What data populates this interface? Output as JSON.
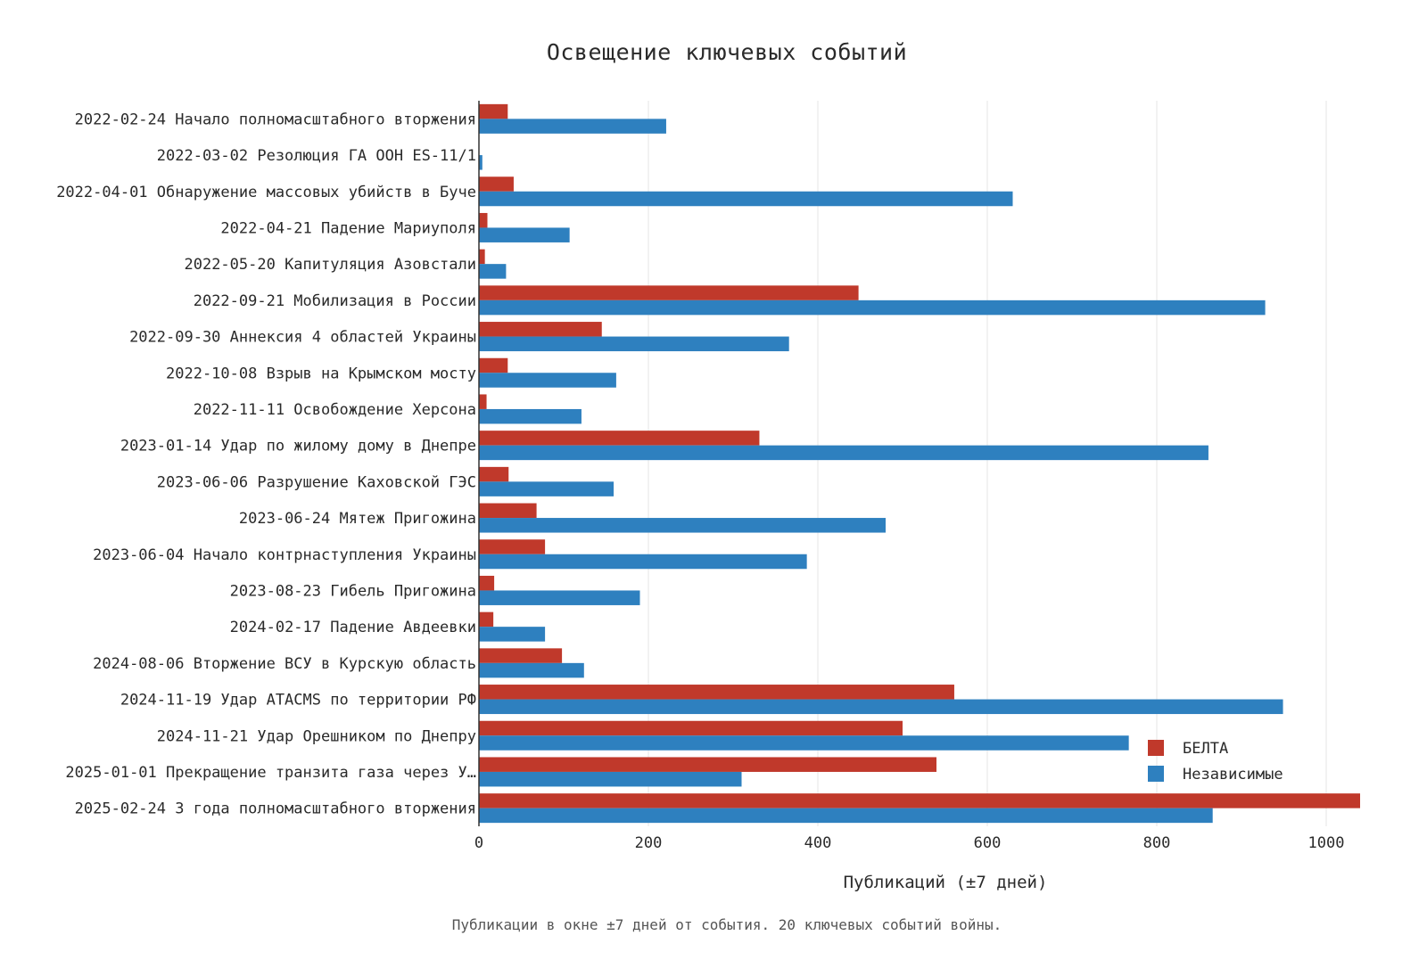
{
  "chart_data": {
    "type": "bar",
    "orientation": "horizontal",
    "title": "Освещение ключевых событий",
    "xlabel": "Публикаций (±7 дней)",
    "ylabel": "",
    "caption": "Публикации в окне ±7 дней от события. 20 ключевых событий войны.",
    "xlim": [
      0,
      1040
    ],
    "xticks": [
      0,
      200,
      400,
      600,
      800,
      1000
    ],
    "grid": true,
    "legend_position": "bottom-right",
    "categories": [
      "2022-02-24 Начало полномасштабного вторжения",
      "2022-03-02 Резолюция ГА ООН ES-11/1",
      "2022-04-01 Обнаружение массовых убийств в Буче",
      "2022-04-21 Падение Мариуполя",
      "2022-05-20 Капитуляция Азовстали",
      "2022-09-21 Мобилизация в России",
      "2022-09-30 Аннексия 4 областей Украины",
      "2022-10-08 Взрыв на Крымском мосту",
      "2022-11-11 Освобождение Херсона",
      "2023-01-14 Удар по жилому дому в Днепре",
      "2023-06-06 Разрушение Каховской ГЭС",
      "2023-06-24 Мятеж Пригожина",
      "2023-06-04 Начало контрнаступления Украины",
      "2023-08-23 Гибель Пригожина",
      "2024-02-17 Падение Авдеевки",
      "2024-08-06 Вторжение ВСУ в Курскую область",
      "2024-11-19 Удар ATACMS по территории РФ",
      "2024-11-21 Удар Орешником по Днепру",
      "2025-01-01 Прекращение транзита газа через У…",
      "2025-02-24 3 года полномасштабного вторжения"
    ],
    "series": [
      {
        "name": "БЕЛТА",
        "color": "#c0392b",
        "values": [
          34,
          0,
          41,
          10,
          7,
          448,
          145,
          34,
          9,
          331,
          35,
          68,
          78,
          18,
          17,
          98,
          561,
          500,
          540,
          1040
        ]
      },
      {
        "name": "Независимые",
        "color": "#2e80bf",
        "values": [
          221,
          4,
          630,
          107,
          32,
          928,
          366,
          162,
          121,
          861,
          159,
          480,
          387,
          190,
          78,
          124,
          949,
          767,
          310,
          866
        ]
      }
    ]
  }
}
